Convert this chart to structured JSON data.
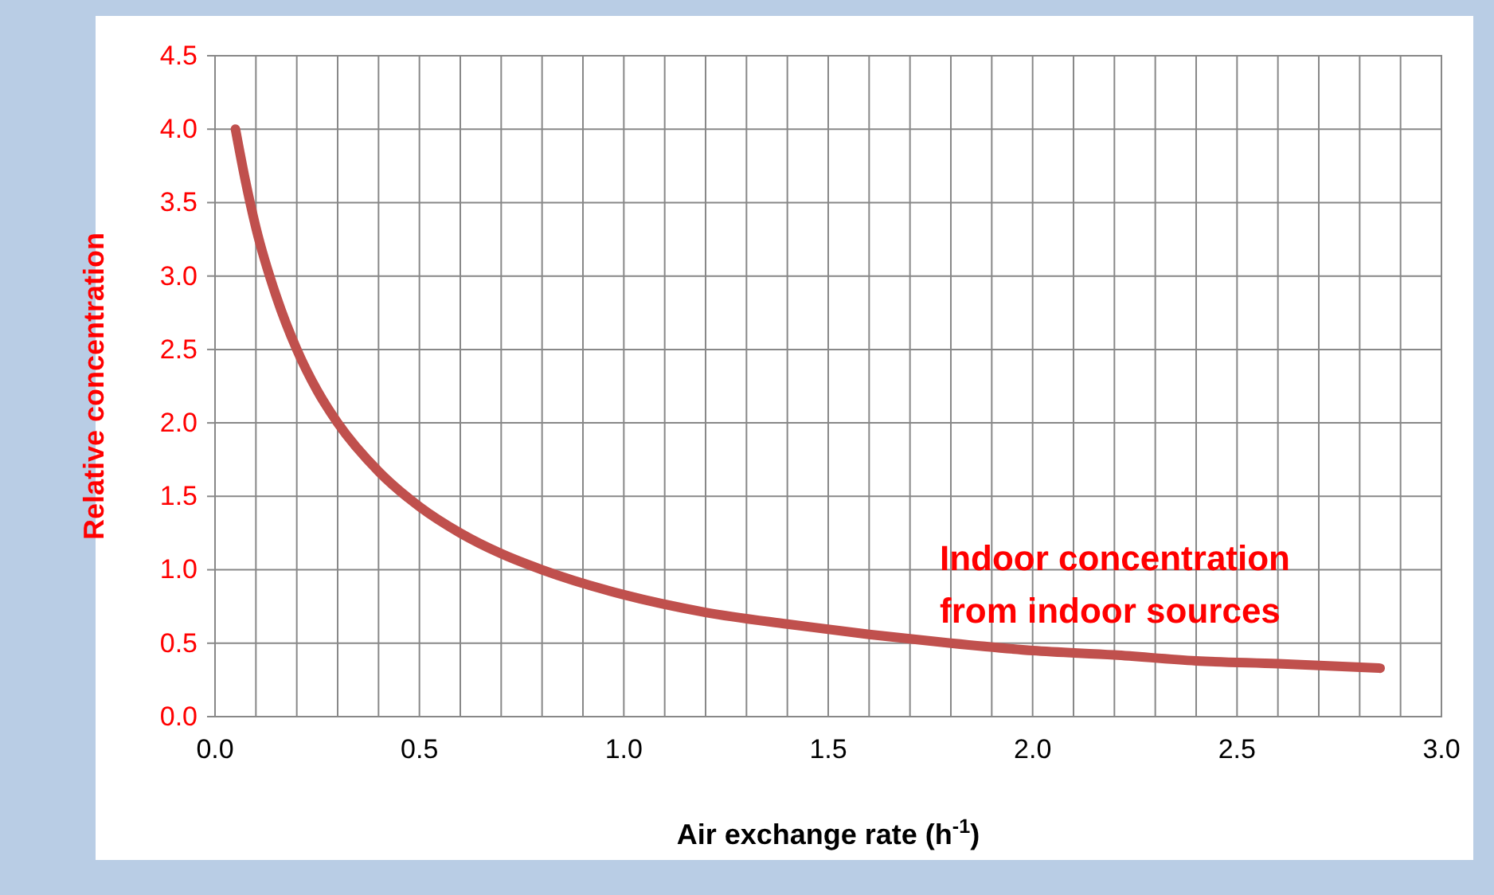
{
  "chart_data": {
    "type": "line",
    "xlabel": "Air exchange rate (h$^{-1}$)",
    "ylabel": "Relative concentration",
    "annotations": [
      "Indoor concentration from indoor sources"
    ],
    "series": [
      {
        "color": "#c0504d",
        "x": [
          0.05,
          0.075,
          0.1,
          0.15,
          0.2,
          0.25,
          0.3,
          0.4,
          0.5,
          0.6,
          0.7,
          0.8,
          1.0,
          1.2,
          1.4,
          1.6,
          1.8,
          2.0,
          2.2,
          2.4,
          2.6,
          2.85
        ],
        "values": [
          4.0,
          3.64,
          3.33,
          2.86,
          2.5,
          2.22,
          2.0,
          1.67,
          1.43,
          1.25,
          1.11,
          1.0,
          0.83,
          0.71,
          0.63,
          0.56,
          0.5,
          0.45,
          0.42,
          0.38,
          0.36,
          0.33
        ]
      }
    ],
    "xlim": [
      0,
      3
    ],
    "ylim": [
      0,
      4.5
    ],
    "xticks": [
      {
        "value": 0,
        "label": "0.0"
      },
      {
        "value": 0.1,
        "label": null
      },
      {
        "value": 0.2,
        "label": null
      },
      {
        "value": 0.3,
        "label": null
      },
      {
        "value": 0.4,
        "label": null
      },
      {
        "value": 0.5,
        "label": "0.5"
      },
      {
        "value": 0.6,
        "label": null
      },
      {
        "value": 0.7,
        "label": null
      },
      {
        "value": 0.8,
        "label": null
      },
      {
        "value": 0.9,
        "label": null
      },
      {
        "value": 1,
        "label": "1.0"
      },
      {
        "value": 1.1,
        "label": null
      },
      {
        "value": 1.2,
        "label": null
      },
      {
        "value": 1.3,
        "label": null
      },
      {
        "value": 1.4,
        "label": null
      },
      {
        "value": 1.5,
        "label": "1.5"
      },
      {
        "value": 1.6,
        "label": null
      },
      {
        "value": 1.7,
        "label": null
      },
      {
        "value": 1.8,
        "label": null
      },
      {
        "value": 1.9,
        "label": null
      },
      {
        "value": 2,
        "label": "2.0"
      },
      {
        "value": 2.1,
        "label": null
      },
      {
        "value": 2.2,
        "label": null
      },
      {
        "value": 2.3,
        "label": null
      },
      {
        "value": 2.4,
        "label": null
      },
      {
        "value": 2.5,
        "label": "2.5"
      },
      {
        "value": 2.6,
        "label": null
      },
      {
        "value": 2.7,
        "label": null
      },
      {
        "value": 2.8,
        "label": null
      },
      {
        "value": 2.9,
        "label": null
      },
      {
        "value": 3,
        "label": "3.0"
      }
    ],
    "yticks": [
      {
        "value": 0,
        "label": "0.0"
      },
      {
        "value": 0.5,
        "label": "0.5"
      },
      {
        "value": 1,
        "label": "1.0"
      },
      {
        "value": 1.5,
        "label": "1.5"
      },
      {
        "value": 2,
        "label": "2.0"
      },
      {
        "value": 2.5,
        "label": "2.5"
      },
      {
        "value": 3,
        "label": "3.0"
      },
      {
        "value": 3.5,
        "label": "3.5"
      },
      {
        "value": 4,
        "label": "4.0"
      },
      {
        "value": 4.5,
        "label": "4.5"
      }
    ],
    "grid": true,
    "marker": "none",
    "line_style": "solid"
  }
}
